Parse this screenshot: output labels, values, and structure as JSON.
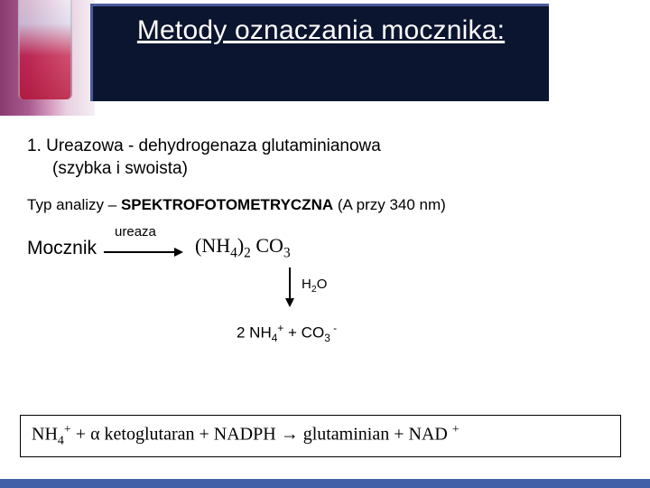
{
  "header": {
    "title": "Metody oznaczania mocznika:"
  },
  "body": {
    "method_line1": "1.  Ureazowa - dehydrogenaza glutaminianowa",
    "method_line2": "(szybka i swoista)",
    "analysis_prefix": "Typ analizy – ",
    "analysis_bold": "SPEKTROFOTOMETRYCZNA",
    "analysis_suffix": "  (A  przy 340 nm)",
    "substrate": "Mocznik",
    "enzyme": "ureaza",
    "product_NH4": "(NH",
    "product_4": "4",
    "product_paren": ")",
    "product_2": "2",
    "product_CO": " CO",
    "product_3": "3",
    "water_H": "H",
    "water_2": "2",
    "water_O": "O",
    "decomp_prefix": "2 NH",
    "decomp_4": "4",
    "decomp_plus": "+",
    "decomp_mid": " + CO",
    "decomp_3": "3",
    "decomp_minus": " -",
    "eq_NH": "NH",
    "eq_4": "4",
    "eq_plus": "+",
    "eq_mid1": " + α ketoglutaran + NADPH   → glutaminian +   NAD ",
    "eq_nadplus": "+"
  },
  "colors": {
    "title_box_bg": "#0b1530",
    "title_box_border": "#4a5a9e",
    "footer": "#4260a8",
    "text": "#000000",
    "bg": "#ffffff"
  }
}
